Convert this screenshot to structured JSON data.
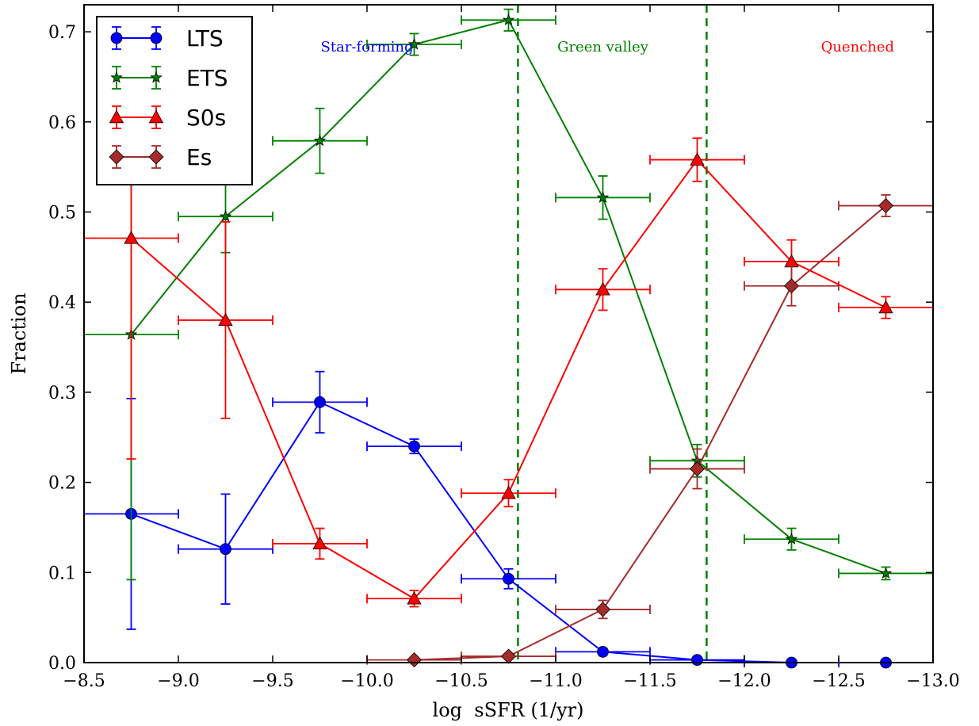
{
  "chart_data": {
    "type": "line",
    "xlabel": "log  sSFR (1/yr)",
    "ylabel": "Fraction",
    "xlim": [
      -8.5,
      -13.0
    ],
    "ylim": [
      0.0,
      0.73
    ],
    "x_inverted": true,
    "xticks": [
      -8.5,
      -9.0,
      -9.5,
      -10.0,
      -10.5,
      -11.0,
      -11.5,
      -12.0,
      -12.5,
      -13.0
    ],
    "xtick_labels": [
      "−8.5",
      "−9.0",
      "−9.5",
      "−10.0",
      "−10.5",
      "−11.0",
      "−11.5",
      "−12.0",
      "−12.5",
      "−13.0"
    ],
    "yticks": [
      0.0,
      0.1,
      0.2,
      0.3,
      0.4,
      0.5,
      0.6,
      0.7
    ],
    "ytick_labels": [
      "0.0",
      "0.1",
      "0.2",
      "0.3",
      "0.4",
      "0.5",
      "0.6",
      "0.7"
    ],
    "xerr": 0.25,
    "legend_position": "top-left",
    "vlines": [
      -10.8,
      -11.8
    ],
    "annotations": [
      {
        "text": "Star-forming",
        "x": -10.0,
        "y": 0.68,
        "color": "#0000ff"
      },
      {
        "text": "Green valley",
        "x": -11.25,
        "y": 0.68,
        "color": "#008000"
      },
      {
        "text": "Quenched",
        "x": -12.6,
        "y": 0.68,
        "color": "#ff0000"
      }
    ],
    "series": [
      {
        "name": "LTS",
        "color": "#0000ff",
        "marker": "circle",
        "x": [
          -8.75,
          -9.25,
          -9.75,
          -10.25,
          -10.75,
          -11.25,
          -11.75,
          -12.25,
          -12.75
        ],
        "y": [
          0.165,
          0.126,
          0.289,
          0.24,
          0.093,
          0.012,
          0.003,
          0.0,
          0.0
        ],
        "yerr": [
          0.128,
          0.061,
          0.034,
          0.008,
          0.011,
          0.002,
          0.001,
          0.0,
          0.0
        ]
      },
      {
        "name": "ETS",
        "color": "#008000",
        "marker": "star",
        "x": [
          -8.75,
          -9.25,
          -9.75,
          -10.25,
          -10.75,
          -11.25,
          -11.75,
          -12.25,
          -12.75
        ],
        "y": [
          0.364,
          0.495,
          0.579,
          0.686,
          0.713,
          0.516,
          0.224,
          0.137,
          0.099
        ],
        "yerr": [
          0.272,
          0.04,
          0.036,
          0.012,
          0.012,
          0.024,
          0.018,
          0.012,
          0.007
        ]
      },
      {
        "name": "S0s",
        "color": "#ff0000",
        "marker": "triangle",
        "x": [
          -8.75,
          -9.25,
          -9.75,
          -10.25,
          -10.75,
          -11.25,
          -11.75,
          -12.25,
          -12.75
        ],
        "y": [
          0.471,
          0.38,
          0.132,
          0.071,
          0.188,
          0.414,
          0.558,
          0.445,
          0.394
        ],
        "yerr": [
          0.245,
          0.109,
          0.017,
          0.009,
          0.015,
          0.023,
          0.024,
          0.024,
          0.012
        ]
      },
      {
        "name": "Es",
        "color": "#a52a2a",
        "marker": "diamond",
        "x": [
          -10.25,
          -10.75,
          -11.25,
          -11.75,
          -12.25,
          -12.75
        ],
        "y": [
          0.003,
          0.007,
          0.059,
          0.215,
          0.418,
          0.507
        ],
        "yerr": [
          0.002,
          0.003,
          0.01,
          0.022,
          0.022,
          0.012
        ]
      }
    ]
  }
}
